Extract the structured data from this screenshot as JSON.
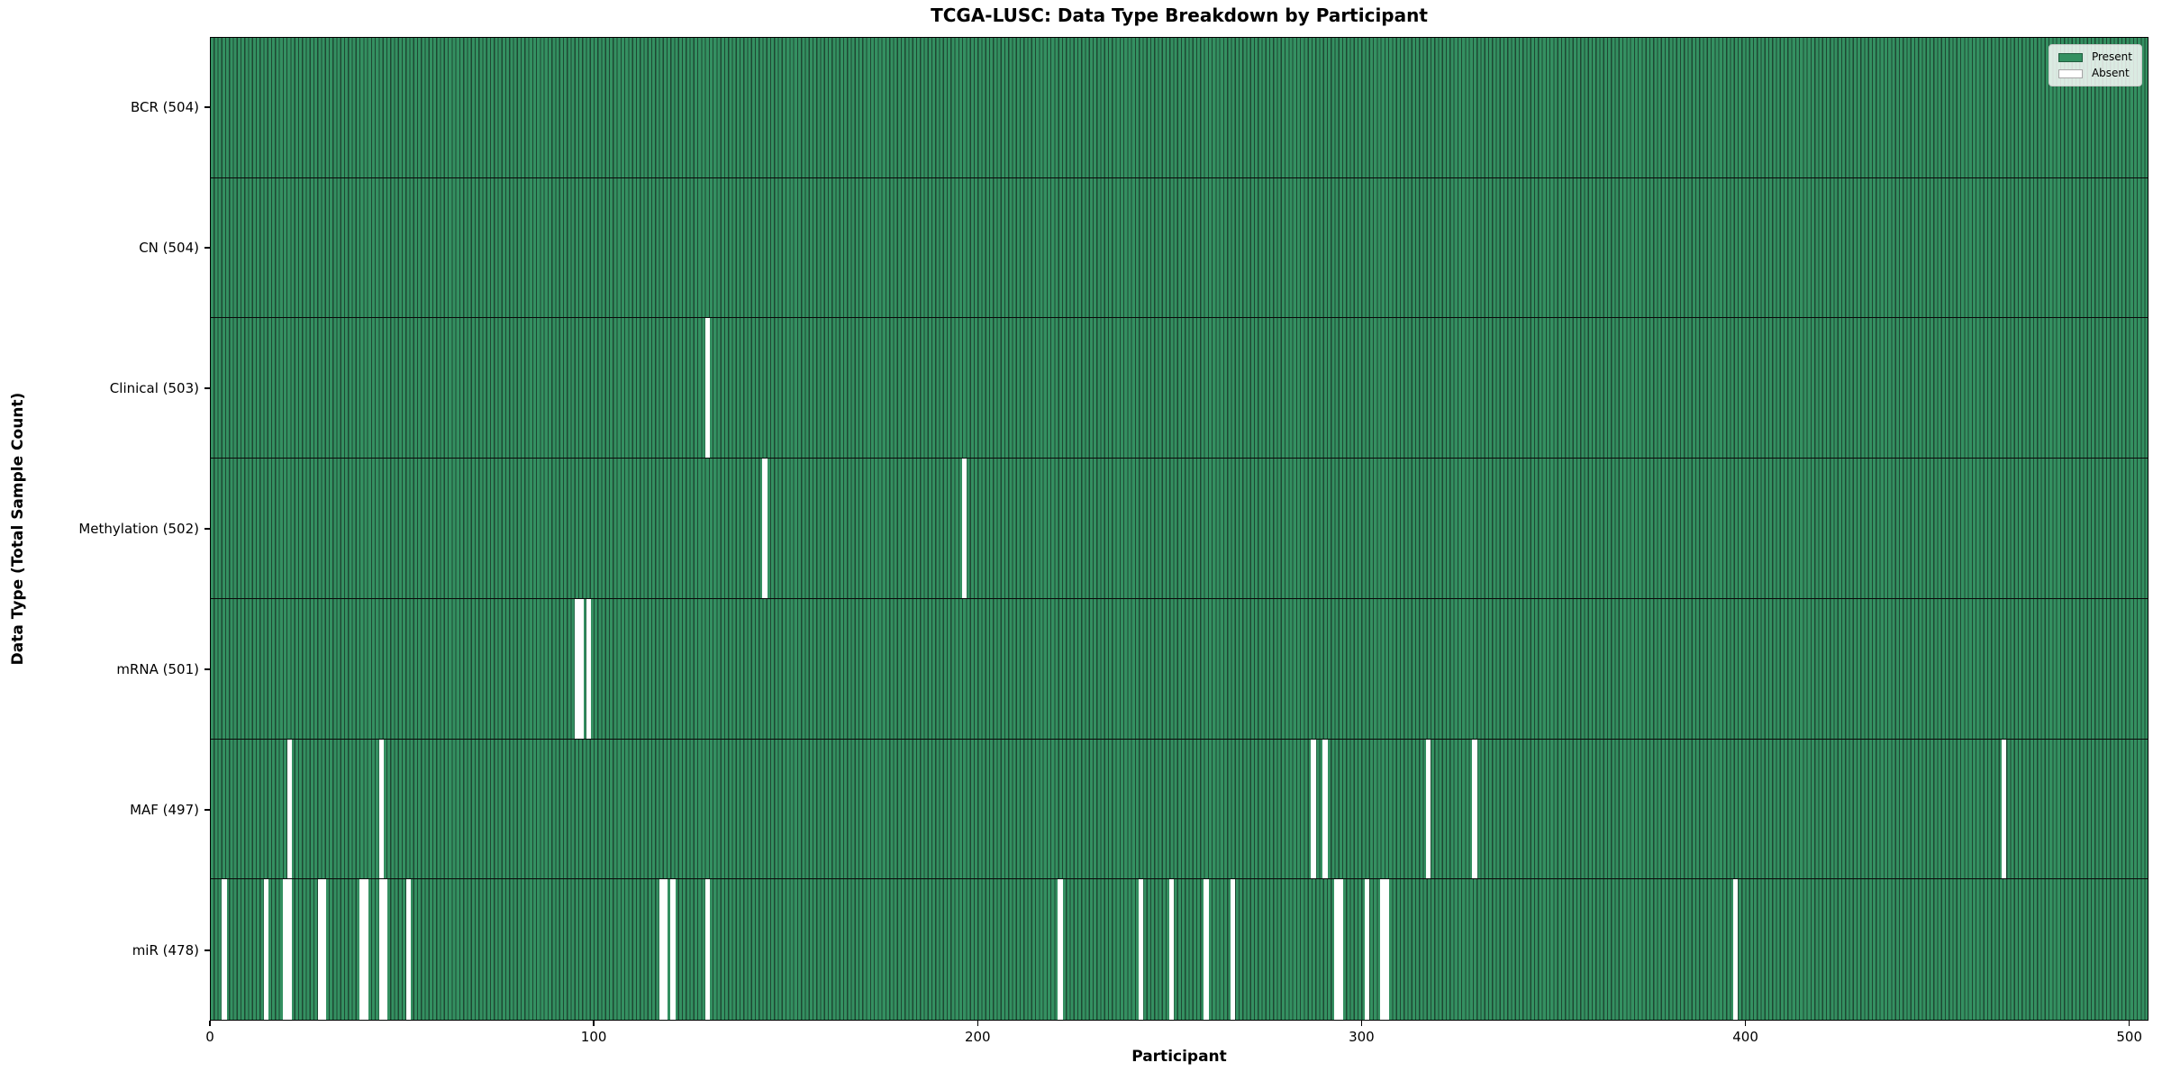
{
  "chart_data": {
    "type": "heatmap",
    "title": "TCGA-LUSC: Data Type Breakdown by Participant",
    "xlabel": "Participant",
    "ylabel": "Data Type (Total Sample Count)",
    "xlim": [
      0,
      505
    ],
    "x_ticks": [
      0,
      100,
      200,
      300,
      400,
      500
    ],
    "n_participants": 504,
    "grid": false,
    "legend": {
      "position": "upper right",
      "entries": [
        {
          "label": "Present",
          "color": "#349061"
        },
        {
          "label": "Absent",
          "color": "#ffffff"
        }
      ]
    },
    "colors": {
      "present_fill": "#349061",
      "bar_edge": "#1e4833",
      "absent": "#ffffff",
      "separator": "#0a0a0a"
    },
    "rows": [
      {
        "id": "bcr",
        "data_type": "BCR",
        "label": "BCR (504)",
        "present_count": 504,
        "absent_participants": []
      },
      {
        "id": "cn",
        "data_type": "CN",
        "label": "CN (504)",
        "present_count": 504,
        "absent_participants": []
      },
      {
        "id": "clinical",
        "data_type": "Clinical",
        "label": "Clinical (503)",
        "present_count": 503,
        "absent_participants": [
          129
        ]
      },
      {
        "id": "methylation",
        "data_type": "Methylation",
        "label": "Methylation (502)",
        "present_count": 502,
        "absent_participants": [
          144,
          196
        ]
      },
      {
        "id": "mrna",
        "data_type": "mRNA",
        "label": "mRNA (501)",
        "present_count": 501,
        "absent_participants": [
          95,
          96,
          98
        ]
      },
      {
        "id": "maf",
        "data_type": "MAF",
        "label": "MAF (497)",
        "present_count": 497,
        "absent_participants": [
          20,
          44,
          287,
          290,
          317,
          329,
          467
        ]
      },
      {
        "id": "mir",
        "data_type": "miR",
        "label": "miR (478)",
        "present_count": 478,
        "absent_participants": [
          3,
          14,
          19,
          20,
          28,
          29,
          39,
          40,
          44,
          45,
          51,
          117,
          118,
          120,
          129,
          221,
          242,
          250,
          259,
          266,
          293,
          294,
          301,
          305,
          306,
          397
        ]
      }
    ]
  }
}
